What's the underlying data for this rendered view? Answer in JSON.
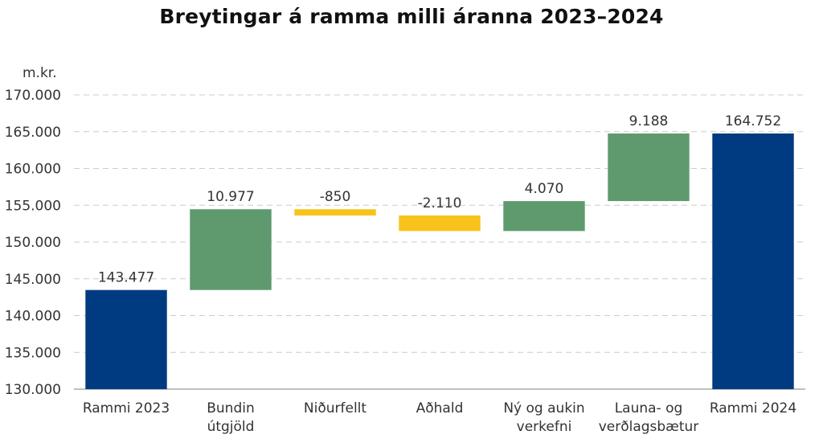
{
  "chart_data": {
    "type": "bar",
    "subtype": "waterfall",
    "title": "Breytingar á ramma milli áranna 2023–2024",
    "ylabel": "m.kr.",
    "xlabel": "",
    "ylim": [
      130000,
      170000
    ],
    "ytick_step": 5000,
    "yticks": [
      "130.000",
      "135.000",
      "140.000",
      "145.000",
      "150.000",
      "155.000",
      "160.000",
      "165.000",
      "170.000"
    ],
    "grid": true,
    "colors": {
      "total": "#003A80",
      "increase": "#5E9A6E",
      "decrease": "#F8C21B"
    },
    "bars": [
      {
        "category": [
          "Rammi 2023"
        ],
        "kind": "total",
        "start": 130000,
        "end": 143477,
        "label": "143.477"
      },
      {
        "category": [
          "Bundin",
          "útgjöld"
        ],
        "kind": "increase",
        "start": 143477,
        "end": 154454,
        "label": "10.977"
      },
      {
        "category": [
          "Niðurfellt"
        ],
        "kind": "decrease",
        "start": 154454,
        "end": 153604,
        "label": "-850"
      },
      {
        "category": [
          "Aðhald"
        ],
        "kind": "decrease",
        "start": 153604,
        "end": 151494,
        "label": "-2.110"
      },
      {
        "category": [
          "Ný og aukin",
          "verkefni"
        ],
        "kind": "increase",
        "start": 151494,
        "end": 155564,
        "label": "4.070"
      },
      {
        "category": [
          "Launa- og",
          "verðlagsbætur"
        ],
        "kind": "increase",
        "start": 155564,
        "end": 164752,
        "label": "9.188"
      },
      {
        "category": [
          "Rammi 2024"
        ],
        "kind": "total",
        "start": 130000,
        "end": 164752,
        "label": "164.752"
      }
    ]
  }
}
